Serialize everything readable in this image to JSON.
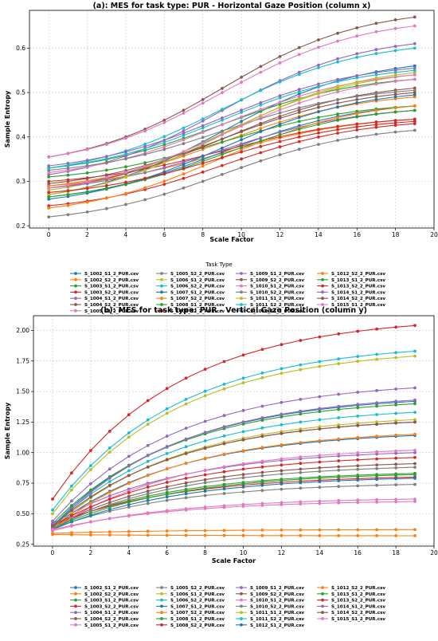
{
  "chart_data": [
    {
      "type": "line",
      "title": "(a): MES for task type: PUR - Horizontal Gaze Position (column x)",
      "xlabel": "Scale Factor",
      "ylabel": "Sample Entropy",
      "xlim": [
        -1.0,
        20.0
      ],
      "ylim": [
        0.195,
        0.685
      ],
      "xticks": [
        0,
        2,
        4,
        6,
        8,
        10,
        12,
        14,
        16,
        18,
        20
      ],
      "xtick_labels": [
        "0",
        "2",
        "4",
        "6",
        "8",
        "10",
        "12",
        "14",
        "16",
        "18",
        "20"
      ],
      "yticks": [
        0.2,
        0.3,
        0.4,
        0.5,
        0.6
      ],
      "ytick_labels": [
        "0.2",
        "0.3",
        "0.4",
        "0.5",
        "0.6"
      ],
      "grid": true,
      "legend_title": "Task Type",
      "legend_placement": "below",
      "x": [
        0,
        1,
        2,
        3,
        4,
        5,
        6,
        7,
        8,
        9,
        10,
        11,
        12,
        13,
        14,
        15,
        16,
        17,
        18,
        19
      ],
      "series": [
        {
          "name": "S_1002_S1_2_PUR.csv",
          "color": "#1f77b4",
          "start": 0.27,
          "end": 0.56
        },
        {
          "name": "S_1002_S2_2_PUR.csv",
          "color": "#ff7f0e",
          "start": 0.29,
          "end": 0.44
        },
        {
          "name": "S_1003_S1_2_PUR.csv",
          "color": "#2ca02c",
          "start": 0.33,
          "end": 0.53
        },
        {
          "name": "S_1003_S2_2_PUR.csv",
          "color": "#d62728",
          "start": 0.245,
          "end": 0.43
        },
        {
          "name": "S_1004_S1_2_PUR.csv",
          "color": "#9467bd",
          "start": 0.315,
          "end": 0.61
        },
        {
          "name": "S_1004_S2_2_PUR.csv",
          "color": "#8c564b",
          "start": 0.355,
          "end": 0.67
        },
        {
          "name": "S_1005_S1_2_PUR.csv",
          "color": "#e377c2",
          "start": 0.355,
          "end": 0.65
        },
        {
          "name": "S_1005_S2_2_PUR.csv",
          "color": "#7f7f7f",
          "start": 0.22,
          "end": 0.415
        },
        {
          "name": "S_1006_S1_2_PUR.csv",
          "color": "#bcbd22",
          "start": 0.28,
          "end": 0.54
        },
        {
          "name": "S_1006_S2_2_PUR.csv",
          "color": "#17becf",
          "start": 0.33,
          "end": 0.6
        },
        {
          "name": "S_1007_S1_2_PUR.csv",
          "color": "#1f77b4",
          "start": 0.265,
          "end": 0.47
        },
        {
          "name": "S_1007_S2_2_PUR.csv",
          "color": "#ff7f0e",
          "start": 0.29,
          "end": 0.49
        },
        {
          "name": "S_1008_S1_2_PUR.csv",
          "color": "#2ca02c",
          "start": 0.31,
          "end": 0.47
        },
        {
          "name": "S_1008_S2_2_PUR.csv",
          "color": "#d62728",
          "start": 0.3,
          "end": 0.44
        },
        {
          "name": "S_1009_S1_2_PUR.csv",
          "color": "#9467bd",
          "start": 0.285,
          "end": 0.46
        },
        {
          "name": "S_1009_S2_2_PUR.csv",
          "color": "#8c564b",
          "start": 0.285,
          "end": 0.51
        },
        {
          "name": "S_1010_S1_2_PUR.csv",
          "color": "#e377c2",
          "start": 0.32,
          "end": 0.54
        },
        {
          "name": "S_1010_S2_2_PUR.csv",
          "color": "#7f7f7f",
          "start": 0.325,
          "end": 0.505
        },
        {
          "name": "S_1011_S1_2_PUR.csv",
          "color": "#bcbd22",
          "start": 0.27,
          "end": 0.545
        },
        {
          "name": "S_1011_S2_2_PUR.csv",
          "color": "#17becf",
          "start": 0.33,
          "end": 0.55
        },
        {
          "name": "S_1012_S1_2_PUR.csv",
          "color": "#1f77b4",
          "start": 0.26,
          "end": 0.495
        },
        {
          "name": "S_1012_S2_2_PUR.csv",
          "color": "#ff7f0e",
          "start": 0.24,
          "end": 0.47
        },
        {
          "name": "S_1013_S1_2_PUR.csv",
          "color": "#2ca02c",
          "start": 0.265,
          "end": 0.46
        },
        {
          "name": "S_1013_S2_2_PUR.csv",
          "color": "#d62728",
          "start": 0.275,
          "end": 0.435
        },
        {
          "name": "S_1014_S1_2_PUR.csv",
          "color": "#9467bd",
          "start": 0.335,
          "end": 0.555
        },
        {
          "name": "S_1014_S2_2_PUR.csv",
          "color": "#8c564b",
          "start": 0.295,
          "end": 0.5
        },
        {
          "name": "S_1015_S1_2_PUR.csv",
          "color": "#e377c2",
          "start": 0.285,
          "end": 0.53
        }
      ]
    },
    {
      "type": "line",
      "title": "(b): MES for task type: PUR - Vertical Gaze Position (column y)",
      "xlabel": "Scale Factor",
      "ylabel": "Sample Entropy",
      "xlim": [
        -1.0,
        20.0
      ],
      "ylim": [
        0.235,
        2.12
      ],
      "xticks": [
        0,
        2,
        4,
        6,
        8,
        10,
        12,
        14,
        16,
        18,
        20
      ],
      "xtick_labels": [
        "0",
        "2",
        "4",
        "6",
        "8",
        "10",
        "12",
        "14",
        "16",
        "18",
        "20"
      ],
      "yticks": [
        0.25,
        0.5,
        0.75,
        1.0,
        1.25,
        1.5,
        1.75,
        2.0
      ],
      "ytick_labels": [
        "0.25",
        "0.50",
        "0.75",
        "1.00",
        "1.25",
        "1.50",
        "1.75",
        "2.00"
      ],
      "grid": true,
      "legend_placement": "below",
      "x": [
        0,
        1,
        2,
        3,
        4,
        5,
        6,
        7,
        8,
        9,
        10,
        11,
        12,
        13,
        14,
        15,
        16,
        17,
        18,
        19
      ],
      "series": [
        {
          "name": "S_1002_S1_2_PUR.csv",
          "color": "#1f77b4",
          "start": 0.4,
          "end": 1.42
        },
        {
          "name": "S_1002_S2_2_PUR.csv",
          "color": "#ff7f0e",
          "start": 0.34,
          "end": 0.37
        },
        {
          "name": "S_1003_S1_2_PUR.csv",
          "color": "#2ca02c",
          "start": 0.42,
          "end": 1.4
        },
        {
          "name": "S_1003_S2_2_PUR.csv",
          "color": "#d62728",
          "start": 0.62,
          "end": 2.04
        },
        {
          "name": "S_1004_S1_2_PUR.csv",
          "color": "#9467bd",
          "start": 0.44,
          "end": 1.53
        },
        {
          "name": "S_1004_S2_2_PUR.csv",
          "color": "#8c564b",
          "start": 0.4,
          "end": 1.25
        },
        {
          "name": "S_1005_S1_2_PUR.csv",
          "color": "#e377c2",
          "start": 0.36,
          "end": 0.62
        },
        {
          "name": "S_1005_S2_2_PUR.csv",
          "color": "#7f7f7f",
          "start": 0.38,
          "end": 0.74
        },
        {
          "name": "S_1006_S1_2_PUR.csv",
          "color": "#bcbd22",
          "start": 0.5,
          "end": 1.79
        },
        {
          "name": "S_1006_S2_2_PUR.csv",
          "color": "#17becf",
          "start": 0.53,
          "end": 1.83
        },
        {
          "name": "S_1007_S1_2_PUR.csv",
          "color": "#1f77b4",
          "start": 0.39,
          "end": 1.14
        },
        {
          "name": "S_1007_S2_2_PUR.csv",
          "color": "#ff7f0e",
          "start": 0.33,
          "end": 0.32
        },
        {
          "name": "S_1008_S1_2_PUR.csv",
          "color": "#2ca02c",
          "start": 0.4,
          "end": 0.83
        },
        {
          "name": "S_1008_S2_2_PUR.csv",
          "color": "#d62728",
          "start": 0.41,
          "end": 0.8
        },
        {
          "name": "S_1009_S1_2_PUR.csv",
          "color": "#9467bd",
          "start": 0.42,
          "end": 1.0
        },
        {
          "name": "S_1009_S2_2_PUR.csv",
          "color": "#8c564b",
          "start": 0.39,
          "end": 0.91
        },
        {
          "name": "S_1010_S1_2_PUR.csv",
          "color": "#e377c2",
          "start": 0.37,
          "end": 1.02
        },
        {
          "name": "S_1010_S2_2_PUR.csv",
          "color": "#7f7f7f",
          "start": 0.38,
          "end": 0.88
        },
        {
          "name": "S_1011_S1_2_PUR.csv",
          "color": "#bcbd22",
          "start": 0.38,
          "end": 1.27
        },
        {
          "name": "S_1011_S2_2_PUR.csv",
          "color": "#17becf",
          "start": 0.4,
          "end": 1.33
        },
        {
          "name": "S_1012_S1_2_PUR.csv",
          "color": "#1f77b4",
          "start": 0.37,
          "end": 0.79
        },
        {
          "name": "S_1012_S2_2_PUR.csv",
          "color": "#ff7f0e",
          "start": 0.37,
          "end": 1.15
        },
        {
          "name": "S_1013_S1_2_PUR.csv",
          "color": "#2ca02c",
          "start": 0.38,
          "end": 0.82
        },
        {
          "name": "S_1013_S2_2_PUR.csv",
          "color": "#d62728",
          "start": 0.4,
          "end": 0.96
        },
        {
          "name": "S_1014_S1_2_PUR.csv",
          "color": "#9467bd",
          "start": 0.38,
          "end": 1.43
        },
        {
          "name": "S_1014_S2_2_PUR.csv",
          "color": "#8c564b",
          "start": 0.4,
          "end": 1.25
        },
        {
          "name": "S_1015_S1_2_PUR.csv",
          "color": "#e377c2",
          "start": 0.37,
          "end": 0.6
        }
      ]
    }
  ]
}
